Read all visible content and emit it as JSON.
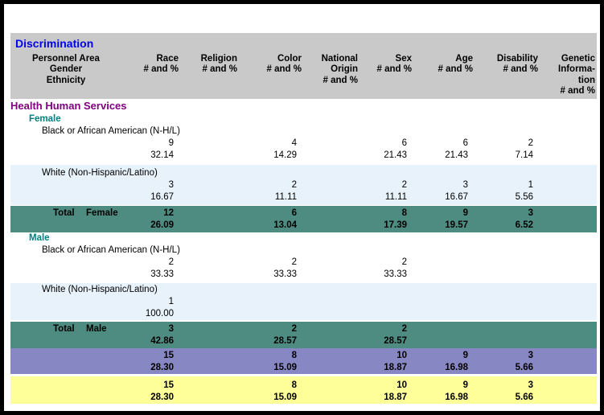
{
  "colors": {
    "title_blue": "#0000ee",
    "header_gray": "#c9c9c9",
    "section_purple": "#800080",
    "gender_teal": "#008080",
    "stripe_blue": "#e7f2fb",
    "total_teal": "#4e8c82",
    "subtotal_purple": "#8787c4",
    "grand_total_yellow": "#ffff99"
  },
  "report": {
    "title": "Discrimination",
    "header": {
      "area": "Personnel Area\nGender\nEthnicity",
      "columns": [
        "Race\n# and %",
        "Religion\n# and %",
        "Color\n# and %",
        "National\nOrigin\n# and %",
        "Sex\n# and %",
        "Age\n# and %",
        "Disability\n# and %",
        "Genetic\nInforma-\ntion\n# and %"
      ]
    },
    "section": "Health Human Services",
    "groups": {
      "female": {
        "label": "Female",
        "rows": [
          {
            "label": "Black or African American (N-H/L)",
            "counts": [
              "9",
              "",
              "4",
              "",
              "6",
              "6",
              "2",
              ""
            ],
            "pcts": [
              "32.14",
              "",
              "14.29",
              "",
              "21.43",
              "21.43",
              "7.14",
              ""
            ]
          },
          {
            "label": "White (Non-Hispanic/Latino)",
            "counts": [
              "3",
              "",
              "2",
              "",
              "2",
              "3",
              "1",
              ""
            ],
            "pcts": [
              "16.67",
              "",
              "11.11",
              "",
              "11.11",
              "16.67",
              "5.56",
              ""
            ]
          }
        ],
        "total": {
          "label": "Total",
          "gender": "Female",
          "counts": [
            "12",
            "",
            "6",
            "",
            "8",
            "9",
            "3",
            ""
          ],
          "pcts": [
            "26.09",
            "",
            "13.04",
            "",
            "17.39",
            "19.57",
            "6.52",
            ""
          ]
        }
      },
      "male": {
        "label": "Male",
        "rows": [
          {
            "label": "Black or African American (N-H/L)",
            "counts": [
              "2",
              "",
              "2",
              "",
              "2",
              "",
              "",
              ""
            ],
            "pcts": [
              "33.33",
              "",
              "33.33",
              "",
              "33.33",
              "",
              "",
              ""
            ]
          },
          {
            "label": "White (Non-Hispanic/Latino)",
            "counts": [
              "1",
              "",
              "",
              "",
              "",
              "",
              "",
              ""
            ],
            "pcts": [
              "100.00",
              "",
              "",
              "",
              "",
              "",
              "",
              ""
            ]
          }
        ],
        "total": {
          "label": "Total",
          "gender": "Male",
          "counts": [
            "3",
            "",
            "2",
            "",
            "2",
            "",
            "",
            ""
          ],
          "pcts": [
            "42.86",
            "",
            "28.57",
            "",
            "28.57",
            "",
            "",
            ""
          ]
        }
      }
    },
    "area_total": {
      "counts": [
        "15",
        "",
        "8",
        "",
        "10",
        "9",
        "3",
        ""
      ],
      "pcts": [
        "28.30",
        "",
        "15.09",
        "",
        "18.87",
        "16.98",
        "5.66",
        ""
      ]
    },
    "overall_total": {
      "counts": [
        "15",
        "",
        "8",
        "",
        "10",
        "9",
        "3",
        ""
      ],
      "pcts": [
        "28.30",
        "",
        "15.09",
        "",
        "18.87",
        "16.98",
        "5.66",
        ""
      ]
    }
  }
}
